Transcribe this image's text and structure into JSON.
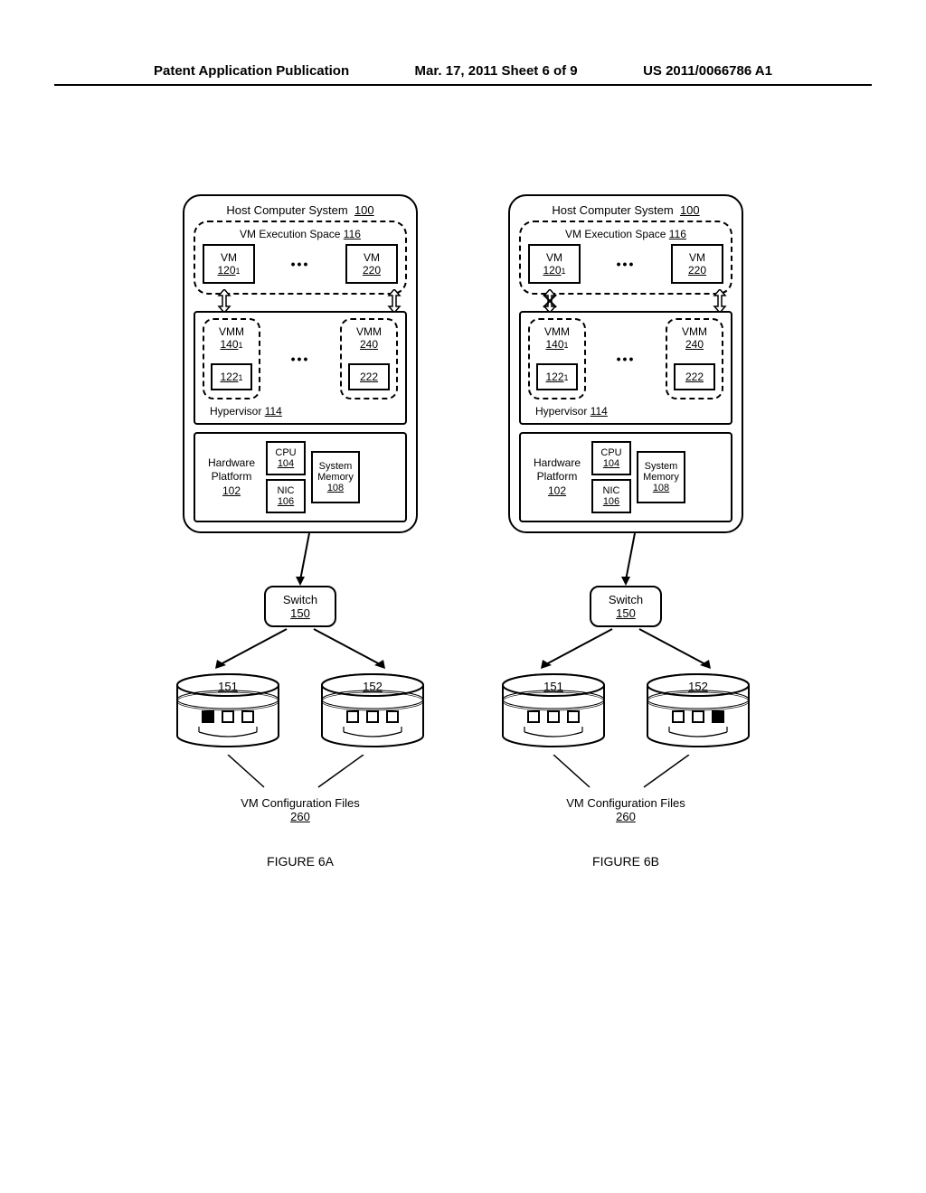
{
  "header": {
    "left": "Patent Application Publication",
    "mid": "Mar. 17, 2011  Sheet 6 of 9",
    "right": "US 2011/0066786 A1"
  },
  "figA": {
    "host_title": "Host Computer System",
    "host_num": "100",
    "exec_title": "VM Execution Space",
    "exec_num": "116",
    "vm1_label": "VM",
    "vm1_num": "120",
    "vm1_sub": "1",
    "vm2_label": "VM",
    "vm2_num": "220",
    "vmm1_label": "VMM",
    "vmm1_num": "140",
    "vmm1_sub": "1",
    "vmm1_inner": "122",
    "vmm1_inner_sub": "1",
    "vmm2_label": "VMM",
    "vmm2_num": "240",
    "vmm2_inner": "222",
    "hyp_label": "Hypervisor",
    "hyp_num": "114",
    "hw_label1": "Hardware",
    "hw_label2": "Platform",
    "hw_num": "102",
    "cpu_label": "CPU",
    "cpu_num": "104",
    "nic_label": "NIC",
    "nic_num": "106",
    "mem_label1": "System",
    "mem_label2": "Memory",
    "mem_num": "108",
    "switch_label": "Switch",
    "switch_num": "150",
    "cyl1_num": "151",
    "cyl2_num": "152",
    "cyl1_squares": [
      "filled",
      "empty",
      "empty"
    ],
    "cyl2_squares": [
      "empty",
      "empty",
      "empty"
    ],
    "vmcfg_label": "VM Configuration Files",
    "vmcfg_num": "260",
    "caption": "FIGURE 6A",
    "cross_left": false
  },
  "figB": {
    "host_title": "Host Computer System",
    "host_num": "100",
    "exec_title": "VM Execution Space",
    "exec_num": "116",
    "vm1_label": "VM",
    "vm1_num": "120",
    "vm1_sub": "1",
    "vm2_label": "VM",
    "vm2_num": "220",
    "vmm1_label": "VMM",
    "vmm1_num": "140",
    "vmm1_sub": "1",
    "vmm1_inner": "122",
    "vmm1_inner_sub": "1",
    "vmm2_label": "VMM",
    "vmm2_num": "240",
    "vmm2_inner": "222",
    "hyp_label": "Hypervisor",
    "hyp_num": "114",
    "hw_label1": "Hardware",
    "hw_label2": "Platform",
    "hw_num": "102",
    "cpu_label": "CPU",
    "cpu_num": "104",
    "nic_label": "NIC",
    "nic_num": "106",
    "mem_label1": "System",
    "mem_label2": "Memory",
    "mem_num": "108",
    "switch_label": "Switch",
    "switch_num": "150",
    "cyl1_num": "151",
    "cyl2_num": "152",
    "cyl1_squares": [
      "empty",
      "empty",
      "empty"
    ],
    "cyl2_squares": [
      "empty",
      "empty",
      "filled"
    ],
    "vmcfg_label": "VM Configuration Files",
    "vmcfg_num": "260",
    "caption": "FIGURE 6B",
    "cross_left": true
  },
  "colors": {
    "stroke": "#000000",
    "bg": "#ffffff"
  }
}
